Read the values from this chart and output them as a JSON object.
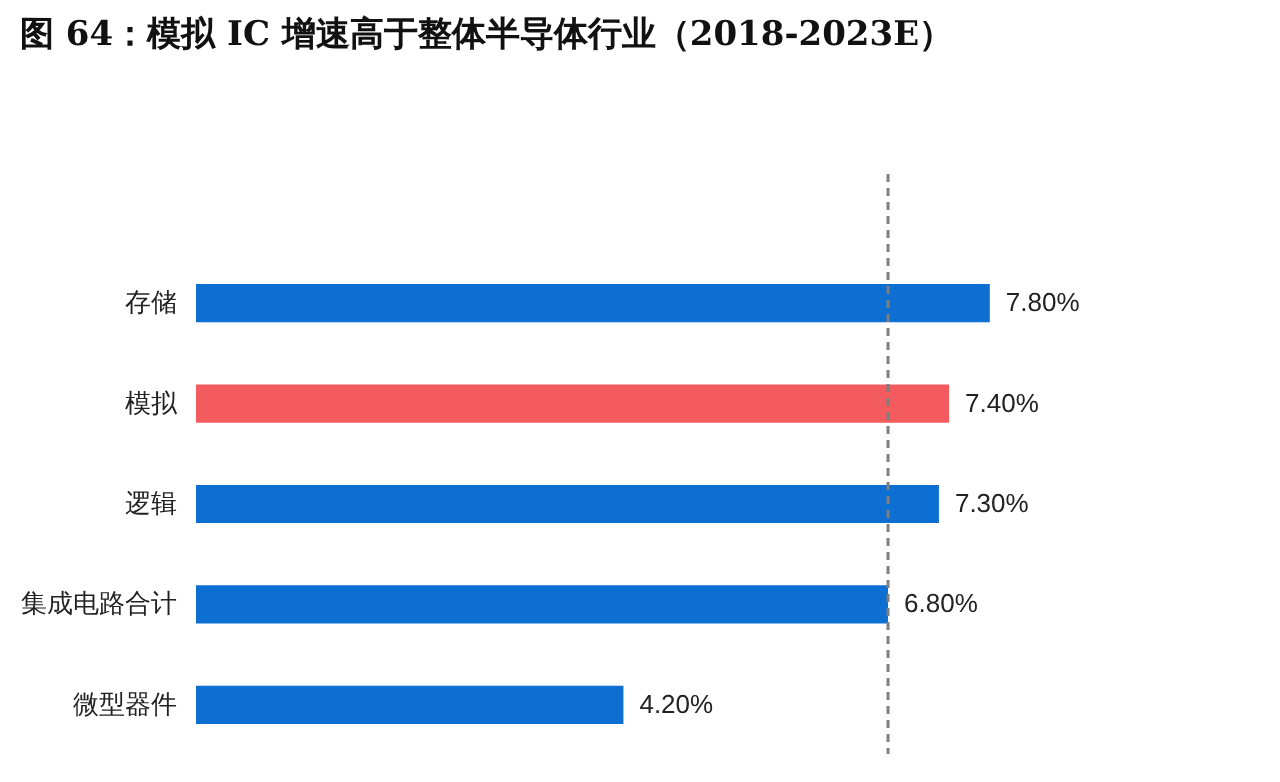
{
  "chart_data": {
    "type": "bar",
    "orientation": "horizontal",
    "title": "图 64：模拟 IC 增速高于整体半导体行业（2018-2023E）",
    "categories": [
      "存储",
      "模拟",
      "逻辑",
      "集成电路合计",
      "微型器件"
    ],
    "values": [
      7.8,
      7.4,
      7.3,
      6.8,
      4.2
    ],
    "colors": [
      "#0c6fd1",
      "#f45b5e",
      "#0c6fd1",
      "#0c6fd1",
      "#0c6fd1"
    ],
    "value_labels": [
      "7.80%",
      "7.40%",
      "7.30%",
      "6.80%",
      "4.20%"
    ],
    "ref_lines": [
      {
        "axis": "x",
        "value": 6.8,
        "color": "#7f7f7f",
        "line_style": "dashed"
      }
    ],
    "grid": false
  }
}
